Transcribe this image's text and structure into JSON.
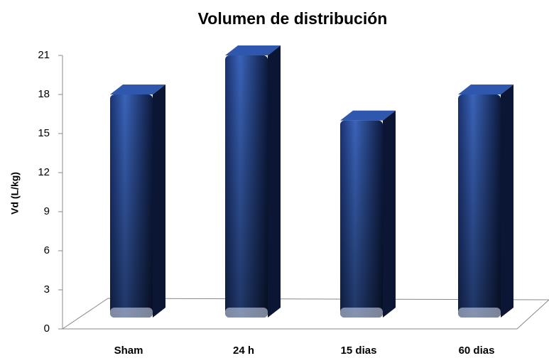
{
  "chart_data": {
    "type": "bar3d",
    "title": "Volumen de distribución",
    "y_label": "Vd   (L/kg)",
    "categories": [
      "Sham",
      "24 h",
      "15 dias",
      "60 dias"
    ],
    "values": [
      18,
      21,
      16,
      18
    ],
    "color": "#2a4f9e",
    "ylim": [
      0,
      21
    ],
    "yticks": [
      0,
      3,
      6,
      9,
      12,
      15,
      18,
      21
    ],
    "grid": false
  }
}
